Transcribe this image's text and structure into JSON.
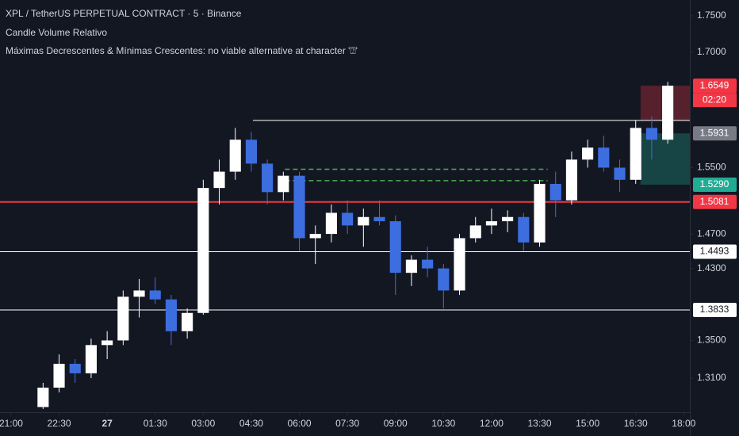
{
  "chart_data": {
    "type": "candlestick",
    "title": "XPL / TetherUS PERPETUAL CONTRACT · 5 · Binance",
    "indicators": [
      "Candle Volume Relativo",
      "Máximas Decrescentes & Mínimas Crescentes: no viable alternative at character '⍰'"
    ],
    "log_scale": true,
    "up_color": "#ffffff",
    "down_color": "#3d6ee0",
    "ylim": [
      1.2747,
      1.7723
    ],
    "yticks": [
      {
        "value": 1.75,
        "label": "1.7500"
      },
      {
        "value": 1.7,
        "label": "1.7000"
      },
      {
        "value": 1.55,
        "label": "1.5500"
      },
      {
        "value": 1.47,
        "label": "1.4700"
      },
      {
        "value": 1.43,
        "label": "1.4300"
      },
      {
        "value": 1.35,
        "label": "1.3500"
      },
      {
        "value": 1.31,
        "label": "1.3100"
      }
    ],
    "xlim": [
      -0.69,
      42.38
    ],
    "xticks": [
      {
        "value": 0,
        "label": "21:00"
      },
      {
        "value": 3,
        "label": "22:30"
      },
      {
        "value": 6,
        "label": "27"
      },
      {
        "value": 9,
        "label": "01:30"
      },
      {
        "value": 12,
        "label": "03:00"
      },
      {
        "value": 15,
        "label": "04:30"
      },
      {
        "value": 18,
        "label": "06:00"
      },
      {
        "value": 21,
        "label": "07:30"
      },
      {
        "value": 24,
        "label": "09:00"
      },
      {
        "value": 27,
        "label": "10:30"
      },
      {
        "value": 30,
        "label": "12:00"
      },
      {
        "value": 33,
        "label": "13:30"
      },
      {
        "value": 36,
        "label": "15:00"
      },
      {
        "value": 39,
        "label": "16:30"
      },
      {
        "value": 42,
        "label": "18:00"
      }
    ],
    "x": [
      2,
      3,
      4,
      5,
      6,
      7,
      8,
      9,
      10,
      11,
      12,
      13,
      14,
      15,
      16,
      17,
      18,
      19,
      20,
      21,
      22,
      23,
      24,
      25,
      26,
      27,
      28,
      29,
      30,
      31,
      32,
      33,
      34,
      35,
      36,
      37,
      38,
      39,
      40,
      41
    ],
    "open": [
      1.28,
      1.3,
      1.325,
      1.315,
      1.345,
      1.35,
      1.398,
      1.405,
      1.395,
      1.36,
      1.38,
      1.525,
      1.545,
      1.585,
      1.555,
      1.52,
      1.54,
      1.465,
      1.47,
      1.495,
      1.48,
      1.49,
      1.485,
      1.425,
      1.44,
      1.43,
      1.405,
      1.465,
      1.48,
      1.485,
      1.49,
      1.46,
      1.53,
      1.51,
      1.56,
      1.575,
      1.55,
      1.535,
      1.6,
      1.585
    ],
    "high": [
      1.305,
      1.335,
      1.33,
      1.352,
      1.36,
      1.405,
      1.418,
      1.42,
      1.4,
      1.385,
      1.535,
      1.56,
      1.6,
      1.595,
      1.56,
      1.545,
      1.545,
      1.48,
      1.505,
      1.51,
      1.5,
      1.51,
      1.492,
      1.445,
      1.455,
      1.435,
      1.47,
      1.49,
      1.5,
      1.498,
      1.495,
      1.535,
      1.545,
      1.57,
      1.585,
      1.59,
      1.56,
      1.61,
      1.615,
      1.66
    ],
    "low": [
      1.278,
      1.295,
      1.305,
      1.31,
      1.33,
      1.345,
      1.375,
      1.39,
      1.345,
      1.352,
      1.378,
      1.505,
      1.535,
      1.545,
      1.505,
      1.51,
      1.45,
      1.435,
      1.46,
      1.47,
      1.455,
      1.48,
      1.4,
      1.41,
      1.42,
      1.385,
      1.4,
      1.46,
      1.47,
      1.472,
      1.45,
      1.455,
      1.49,
      1.505,
      1.55,
      1.545,
      1.52,
      1.53,
      1.56,
      1.58
    ],
    "close": [
      1.3,
      1.325,
      1.315,
      1.345,
      1.35,
      1.398,
      1.405,
      1.395,
      1.36,
      1.38,
      1.525,
      1.545,
      1.585,
      1.555,
      1.52,
      1.54,
      1.465,
      1.47,
      1.495,
      1.48,
      1.49,
      1.485,
      1.425,
      1.44,
      1.43,
      1.405,
      1.465,
      1.48,
      1.485,
      1.49,
      1.46,
      1.53,
      1.51,
      1.56,
      1.575,
      1.55,
      1.535,
      1.6,
      1.585,
      1.6549
    ],
    "levels": [
      {
        "value": 1.6096,
        "x_start": 15.1,
        "color": "#ffffff"
      },
      {
        "value": 1.5081,
        "x_start": -0.69,
        "color": "#f23645"
      },
      {
        "value": 1.4493,
        "x_start": -0.69,
        "color": "#ffffff"
      },
      {
        "value": 1.3833,
        "x_start": -0.69,
        "color": "#ffffff"
      }
    ],
    "zone": {
      "top": 1.548,
      "bottom": 1.534,
      "x_start": 17.1,
      "x_end": 33.5,
      "color": "#4caf50"
    },
    "boxes": [
      {
        "top": 1.6549,
        "bottom": 1.6096,
        "x_start": 39.3,
        "color": "#f23645"
      },
      {
        "top": 1.5931,
        "bottom": 1.529,
        "x_start": 39.3,
        "color": "#22ab94"
      }
    ],
    "price_labels": [
      {
        "value": 1.6549,
        "label": "1.6549",
        "bg": "#f23645",
        "fg": "#ffffff"
      },
      {
        "value": 1.5931,
        "label": "1.5931",
        "bg": "#787b86",
        "fg": "#ffffff"
      },
      {
        "value": 1.529,
        "label": "1.5290",
        "bg": "#22ab94",
        "fg": "#ffffff"
      },
      {
        "value": 1.5081,
        "label": "1.5081",
        "bg": "#f23645",
        "fg": "#ffffff"
      },
      {
        "value": 1.4493,
        "label": "1.4493",
        "bg": "#ffffff",
        "fg": "#131722"
      },
      {
        "value": 1.3833,
        "label": "1.3833",
        "bg": "#ffffff",
        "fg": "#131722"
      }
    ],
    "countdown": "02:20"
  }
}
